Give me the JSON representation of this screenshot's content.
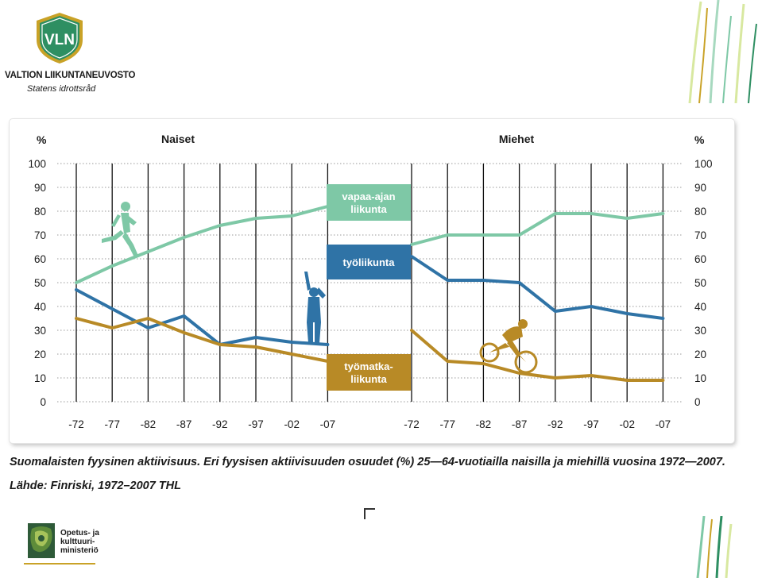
{
  "header": {
    "logo_text": "VLN",
    "org_name": "VALTION LIIKUNTANEUVOSTO",
    "org_subtitle": "Statens idrottsråd"
  },
  "chart_data": {
    "type": "line",
    "y_unit_label": "%",
    "ylim": [
      0,
      100
    ],
    "yticks": [
      0,
      10,
      20,
      30,
      40,
      50,
      60,
      70,
      80,
      90,
      100
    ],
    "grid": true,
    "panels": [
      {
        "title": "Naiset",
        "categories": [
          "-72",
          "-77",
          "-82",
          "-87",
          "-92",
          "-97",
          "-02",
          "-07"
        ],
        "series": [
          {
            "name": "vapaa-ajan liikunta",
            "values": [
              50,
              57,
              63,
              69,
              74,
              77,
              78,
              82
            ]
          },
          {
            "name": "työliikunta",
            "values": [
              47,
              39,
              31,
              36,
              24,
              27,
              25,
              24
            ]
          },
          {
            "name": "työmatkaliikunta",
            "values": [
              35,
              31,
              35,
              29,
              24,
              23,
              20,
              17
            ]
          }
        ]
      },
      {
        "title": "Miehet",
        "categories": [
          "-72",
          "-77",
          "-82",
          "-87",
          "-92",
          "-97",
          "-02",
          "-07"
        ],
        "series": [
          {
            "name": "vapaa-ajan liikunta",
            "values": [
              66,
              70,
              70,
              70,
              79,
              79,
              77,
              79
            ]
          },
          {
            "name": "työliikunta",
            "values": [
              61,
              51,
              51,
              50,
              38,
              40,
              37,
              35
            ]
          },
          {
            "name": "työmatkaliikunta",
            "values": [
              30,
              17,
              16,
              12,
              10,
              11,
              9,
              9
            ]
          }
        ]
      }
    ],
    "legend_boxes": [
      {
        "lines": [
          "vapaa-ajan",
          "liikunta"
        ],
        "color": "#7ec8a6"
      },
      {
        "lines": [
          "työliikunta"
        ],
        "color": "#2f73a6"
      },
      {
        "lines": [
          "työmatka-",
          "liikunta"
        ],
        "color": "#b88a26"
      }
    ],
    "colors": {
      "vapaa-ajan liikunta": "#7ec8a6",
      "työliikunta": "#2f73a6",
      "työmatkaliikunta": "#b88a26",
      "figure_green": "#7ec8a6",
      "figure_blue": "#2f73a6",
      "figure_gold": "#b88a26"
    }
  },
  "caption": {
    "line1": "Suomalaisten fyysinen aktiivisuus. Eri fyysisen aktiivisuuden osuudet (%) 25—64-vuotiailla naisilla ja miehillä vuosina  1972—2007.",
    "line2": "Lähde: Finriski, 1972–2007 THL"
  },
  "footer": {
    "ministry_lines": [
      "Opetus- ja",
      "kulttuuri-",
      "ministeriö"
    ]
  }
}
